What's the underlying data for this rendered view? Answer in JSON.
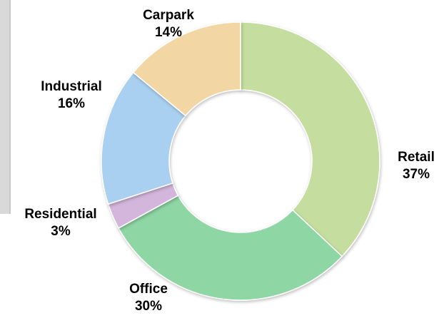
{
  "chart_data": {
    "type": "pie",
    "donut": true,
    "legend": "none",
    "slices": [
      {
        "label": "Retail",
        "value": 37,
        "percent_label": "37%",
        "color": "#c5dea0"
      },
      {
        "label": "Office",
        "value": 30,
        "percent_label": "30%",
        "color": "#8ed6a4"
      },
      {
        "label": "Residential",
        "value": 3,
        "percent_label": "3%",
        "color": "#d4b6dd"
      },
      {
        "label": "Industrial",
        "value": 16,
        "percent_label": "16%",
        "color": "#a9d0f0"
      },
      {
        "label": "Carpark",
        "value": 14,
        "percent_label": "14%",
        "color": "#f2d6a4"
      }
    ]
  }
}
